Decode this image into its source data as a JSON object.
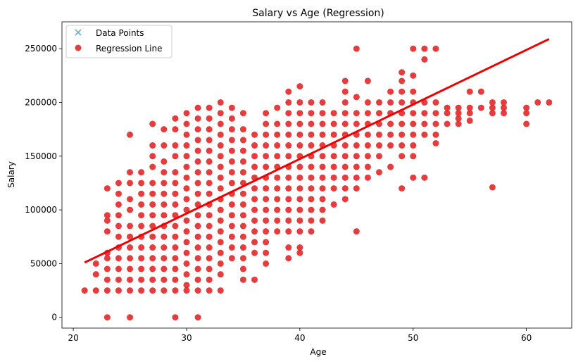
{
  "chart_data": {
    "type": "scatter",
    "title": "Salary vs Age (Regression)",
    "xlabel": "Age",
    "ylabel": "Salary",
    "xlim": [
      19,
      64
    ],
    "ylim": [
      -10000,
      275000
    ],
    "x_ticks": [
      20,
      30,
      40,
      50,
      60
    ],
    "y_ticks": [
      0,
      50000,
      100000,
      150000,
      200000,
      250000
    ],
    "grid": false,
    "legend_position": "top-left",
    "legend": [
      "Data Points",
      "Regression Line"
    ],
    "colors": {
      "data_points": "#6baed6",
      "regression_points": "#e31a1c",
      "regression_line": "#ee0000"
    },
    "regression_line": {
      "x": [
        21,
        62
      ],
      "y": [
        51000,
        259000
      ]
    },
    "series": [
      {
        "name": "Data Points",
        "marker": "x",
        "points": []
      },
      {
        "name": "Regression Line",
        "marker": "o",
        "columns": [
          {
            "x": 21,
            "y": [
              25000
            ]
          },
          {
            "x": 22,
            "y": [
              25000,
              40000,
              50000
            ]
          },
          {
            "x": 23,
            "y": [
              0,
              25000,
              35000,
              45000,
              55000,
              60000,
              80000,
              90000,
              95000,
              120000
            ]
          },
          {
            "x": 24,
            "y": [
              25000,
              35000,
              45000,
              55000,
              65000,
              75000,
              85000,
              95000,
              105000,
              115000,
              125000
            ]
          },
          {
            "x": 25,
            "y": [
              0,
              25000,
              35000,
              45000,
              55000,
              65000,
              75000,
              85000,
              100000,
              110000,
              125000,
              135000,
              170000
            ]
          },
          {
            "x": 26,
            "y": [
              25000,
              35000,
              45000,
              55000,
              65000,
              75000,
              85000,
              95000,
              105000,
              115000,
              125000,
              135000
            ]
          },
          {
            "x": 27,
            "y": [
              25000,
              35000,
              45000,
              55000,
              65000,
              75000,
              85000,
              95000,
              105000,
              115000,
              125000,
              140000,
              150000,
              160000,
              180000
            ]
          },
          {
            "x": 28,
            "y": [
              25000,
              35000,
              45000,
              55000,
              65000,
              75000,
              85000,
              95000,
              105000,
              115000,
              125000,
              135000,
              145000,
              160000,
              175000
            ]
          },
          {
            "x": 29,
            "y": [
              0,
              25000,
              35000,
              45000,
              55000,
              65000,
              75000,
              85000,
              95000,
              105000,
              115000,
              125000,
              135000,
              150000,
              160000,
              175000,
              185000
            ]
          },
          {
            "x": 30,
            "y": [
              25000,
              30000,
              40000,
              50000,
              60000,
              70000,
              80000,
              90000,
              100000,
              110000,
              120000,
              130000,
              140000,
              150000,
              160000,
              170000,
              180000,
              190000
            ]
          },
          {
            "x": 31,
            "y": [
              0,
              25000,
              35000,
              45000,
              55000,
              65000,
              75000,
              85000,
              95000,
              105000,
              115000,
              125000,
              135000,
              145000,
              155000,
              165000,
              175000,
              185000,
              195000
            ]
          },
          {
            "x": 32,
            "y": [
              25000,
              35000,
              45000,
              55000,
              65000,
              75000,
              85000,
              95000,
              105000,
              115000,
              125000,
              135000,
              145000,
              155000,
              165000,
              175000,
              185000,
              195000
            ]
          },
          {
            "x": 33,
            "y": [
              25000,
              40000,
              50000,
              60000,
              70000,
              80000,
              90000,
              100000,
              110000,
              120000,
              130000,
              140000,
              150000,
              160000,
              170000,
              180000,
              190000,
              200000
            ]
          },
          {
            "x": 34,
            "y": [
              55000,
              65000,
              75000,
              85000,
              95000,
              105000,
              115000,
              125000,
              135000,
              145000,
              155000,
              165000,
              175000,
              185000,
              195000
            ]
          },
          {
            "x": 35,
            "y": [
              35000,
              45000,
              55000,
              65000,
              75000,
              85000,
              95000,
              105000,
              115000,
              125000,
              135000,
              145000,
              155000,
              165000,
              175000,
              190000
            ]
          },
          {
            "x": 36,
            "y": [
              35000,
              60000,
              70000,
              80000,
              90000,
              100000,
              110000,
              120000,
              130000,
              140000,
              150000,
              160000,
              170000
            ]
          },
          {
            "x": 37,
            "y": [
              50000,
              60000,
              70000,
              80000,
              90000,
              100000,
              110000,
              120000,
              130000,
              140000,
              150000,
              160000,
              170000,
              180000,
              190000
            ]
          },
          {
            "x": 38,
            "y": [
              80000,
              90000,
              100000,
              110000,
              120000,
              130000,
              140000,
              150000,
              160000,
              170000,
              180000,
              195000
            ]
          },
          {
            "x": 39,
            "y": [
              55000,
              65000,
              80000,
              90000,
              100000,
              110000,
              120000,
              130000,
              140000,
              150000,
              160000,
              170000,
              180000,
              190000,
              200000,
              210000
            ]
          },
          {
            "x": 40,
            "y": [
              60000,
              65000,
              80000,
              90000,
              100000,
              110000,
              120000,
              130000,
              140000,
              150000,
              160000,
              170000,
              180000,
              190000,
              200000,
              215000
            ]
          },
          {
            "x": 41,
            "y": [
              80000,
              90000,
              100000,
              110000,
              120000,
              130000,
              140000,
              150000,
              160000,
              170000,
              180000,
              190000,
              200000
            ]
          },
          {
            "x": 42,
            "y": [
              90000,
              100000,
              110000,
              120000,
              130000,
              140000,
              150000,
              160000,
              170000,
              180000,
              190000,
              200000
            ]
          },
          {
            "x": 43,
            "y": [
              105000,
              120000,
              130000,
              140000,
              150000,
              160000,
              170000,
              180000,
              190000
            ]
          },
          {
            "x": 44,
            "y": [
              110000,
              120000,
              130000,
              140000,
              150000,
              160000,
              170000,
              180000,
              190000,
              200000,
              210000,
              220000
            ]
          },
          {
            "x": 45,
            "y": [
              80000,
              120000,
              130000,
              140000,
              150000,
              160000,
              170000,
              180000,
              190000,
              205000,
              250000
            ]
          },
          {
            "x": 46,
            "y": [
              130000,
              140000,
              150000,
              160000,
              170000,
              180000,
              190000,
              200000,
              220000
            ]
          },
          {
            "x": 47,
            "y": [
              135000,
              150000,
              160000,
              170000,
              180000,
              190000,
              200000
            ]
          },
          {
            "x": 48,
            "y": [
              140000,
              160000,
              170000,
              180000,
              190000,
              200000,
              210000
            ]
          },
          {
            "x": 49,
            "y": [
              120000,
              150000,
              160000,
              170000,
              180000,
              190000,
              200000,
              210000,
              220000,
              228000
            ]
          },
          {
            "x": 50,
            "y": [
              130000,
              150000,
              160000,
              170000,
              180000,
              190000,
              200000,
              210000,
              225000,
              250000
            ]
          },
          {
            "x": 51,
            "y": [
              130000,
              170000,
              180000,
              190000,
              200000,
              240000,
              250000
            ]
          },
          {
            "x": 52,
            "y": [
              162000,
              170000,
              180000,
              190000,
              200000,
              250000
            ]
          },
          {
            "x": 53,
            "y": [
              180000,
              190000,
              195000
            ]
          },
          {
            "x": 54,
            "y": [
              180000,
              185000,
              190000,
              195000
            ]
          },
          {
            "x": 55,
            "y": [
              183000,
              190000,
              195000,
              210000
            ]
          },
          {
            "x": 56,
            "y": [
              195000,
              210000
            ]
          },
          {
            "x": 57,
            "y": [
              121000,
              190000,
              195000,
              200000
            ]
          },
          {
            "x": 58,
            "y": [
              190000,
              195000,
              200000
            ]
          },
          {
            "x": 60,
            "y": [
              180000,
              190000,
              195000
            ]
          },
          {
            "x": 61,
            "y": [
              200000
            ]
          },
          {
            "x": 62,
            "y": [
              200000
            ]
          }
        ]
      }
    ]
  }
}
